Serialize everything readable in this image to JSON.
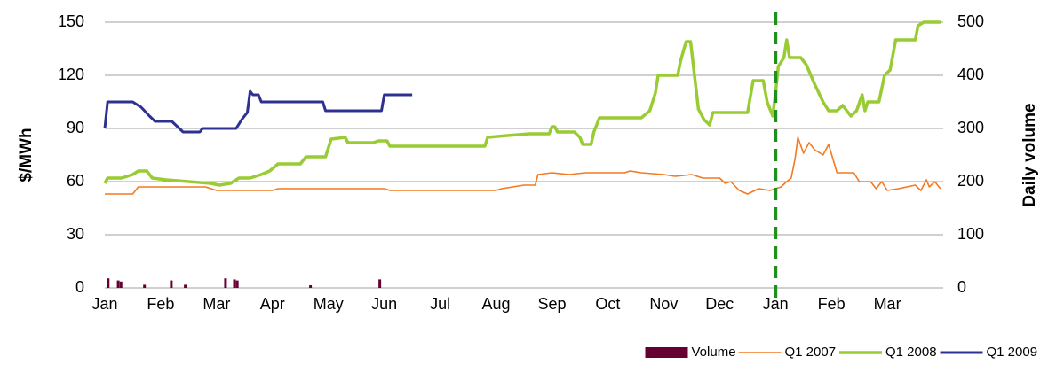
{
  "chart_data": {
    "type": "line",
    "y_label": "$/MWh",
    "y2_label": "Daily volume",
    "xlim": [
      0,
      15
    ],
    "xticks": [
      {
        "value": 0,
        "label": "Jan"
      },
      {
        "value": 1,
        "label": "Feb"
      },
      {
        "value": 2,
        "label": "Mar"
      },
      {
        "value": 3,
        "label": "Apr"
      },
      {
        "value": 4,
        "label": "May"
      },
      {
        "value": 5,
        "label": "Jun"
      },
      {
        "value": 6,
        "label": "Jul"
      },
      {
        "value": 7,
        "label": "Aug"
      },
      {
        "value": 8,
        "label": "Sep"
      },
      {
        "value": 9,
        "label": "Oct"
      },
      {
        "value": 10,
        "label": "Nov"
      },
      {
        "value": 11,
        "label": "Dec"
      },
      {
        "value": 12,
        "label": "Jan"
      },
      {
        "value": 13,
        "label": "Feb"
      },
      {
        "value": 14,
        "label": "Mar"
      }
    ],
    "ylim": [
      0,
      150
    ],
    "yticks": [
      0,
      30,
      60,
      90,
      120,
      150
    ],
    "y2lim": [
      0,
      500
    ],
    "y2ticks": [
      0,
      100,
      200,
      300,
      400,
      500
    ],
    "grid": true,
    "legend": "bottom-right",
    "vline": {
      "x": 12,
      "color": "#1f8f1f"
    },
    "series": [
      {
        "name": "Volume",
        "type": "bar",
        "axis": "y2",
        "color": "#660033",
        "x": [
          0.06,
          0.24,
          0.29,
          0.71,
          1.19,
          1.44,
          2.16,
          2.32,
          2.37,
          3.68,
          4.92
        ],
        "values": [
          18,
          14,
          12,
          6,
          14,
          6,
          18,
          16,
          14,
          5,
          16
        ]
      },
      {
        "name": "Q1 2007",
        "type": "line",
        "color": "#f47920",
        "line_width": 1.6,
        "x": [
          0,
          0.5,
          0.6,
          1.8,
          2.0,
          3.0,
          3.1,
          5.0,
          5.1,
          7.0,
          7.1,
          7.5,
          7.7,
          7.75,
          8.0,
          8.3,
          8.6,
          9.3,
          9.4,
          9.6,
          10.0,
          10.2,
          10.5,
          10.7,
          11.0,
          11.1,
          11.2,
          11.35,
          11.5,
          11.7,
          11.9,
          12.1,
          12.2,
          12.28,
          12.35,
          12.4,
          12.5,
          12.6,
          12.7,
          12.85,
          12.95,
          13.1,
          13.4,
          13.5,
          13.7,
          13.8,
          13.9,
          14.0,
          14.2,
          14.5,
          14.6,
          14.7,
          14.75,
          14.85,
          14.95
        ],
        "values": [
          53,
          53,
          57,
          57,
          55,
          55,
          56,
          56,
          55,
          55,
          56,
          58,
          58,
          64,
          65,
          64,
          65,
          65,
          66,
          65,
          64,
          63,
          64,
          62,
          62,
          59,
          60,
          55,
          53,
          56,
          55,
          57,
          60,
          62,
          73,
          85,
          76,
          82,
          78,
          75,
          81,
          65,
          65,
          60,
          60,
          56,
          60,
          55,
          56,
          58,
          55,
          61,
          57,
          60,
          56
        ]
      },
      {
        "name": "Q1 2008",
        "type": "line",
        "color": "#99cc33",
        "line_width": 3.5,
        "x": [
          0,
          0.05,
          0.3,
          0.5,
          0.6,
          0.75,
          0.85,
          1.1,
          1.5,
          1.9,
          2.05,
          2.25,
          2.4,
          2.6,
          2.8,
          2.95,
          3.1,
          3.5,
          3.6,
          3.95,
          4.05,
          4.3,
          4.35,
          4.8,
          4.9,
          5.05,
          5.1,
          6.8,
          6.85,
          7.2,
          7.6,
          7.95,
          8.0,
          8.05,
          8.1,
          8.4,
          8.5,
          8.55,
          8.7,
          8.75,
          8.85,
          9.6,
          9.75,
          9.85,
          9.9,
          10.25,
          10.3,
          10.4,
          10.48,
          10.55,
          10.62,
          10.72,
          10.82,
          10.88,
          11.5,
          11.6,
          11.78,
          11.85,
          11.95,
          12.0,
          12.05,
          12.15,
          12.2,
          12.25,
          12.45,
          12.55,
          12.7,
          12.85,
          12.95,
          13.1,
          13.2,
          13.35,
          13.45,
          13.55,
          13.6,
          13.65,
          13.85,
          13.95,
          14.05,
          14.15,
          14.5,
          14.55,
          14.65,
          14.95
        ],
        "values": [
          59,
          62,
          62,
          64,
          66,
          66,
          62,
          61,
          60,
          59,
          58,
          59,
          62,
          62,
          64,
          66,
          70,
          70,
          74,
          74,
          84,
          85,
          82,
          82,
          83,
          83,
          80,
          80,
          85,
          86,
          87,
          87,
          91,
          91,
          88,
          88,
          85,
          81,
          81,
          88,
          96,
          96,
          100,
          110,
          120,
          120,
          128,
          139,
          139,
          120,
          101,
          95,
          92,
          99,
          99,
          117,
          117,
          105,
          97,
          110,
          125,
          130,
          140,
          130,
          130,
          126,
          115,
          105,
          100,
          100,
          103,
          97,
          100,
          109,
          100,
          105,
          105,
          120,
          123,
          140,
          140,
          148,
          150,
          150
        ]
      },
      {
        "name": "Q1 2009",
        "type": "line",
        "color": "#2e3192",
        "line_width": 3,
        "x": [
          0,
          0.05,
          0.5,
          0.55,
          0.65,
          0.8,
          0.9,
          1.2,
          1.3,
          1.4,
          1.7,
          1.75,
          2.35,
          2.45,
          2.55,
          2.6,
          2.65,
          2.75,
          2.8,
          3.9,
          3.95,
          4.95,
          5.0,
          5.5
        ],
        "values": [
          90,
          105,
          105,
          104,
          102,
          97,
          94,
          94,
          91,
          88,
          88,
          90,
          90,
          95,
          99,
          111,
          109,
          109,
          105,
          105,
          100,
          100,
          109,
          109
        ]
      }
    ]
  }
}
